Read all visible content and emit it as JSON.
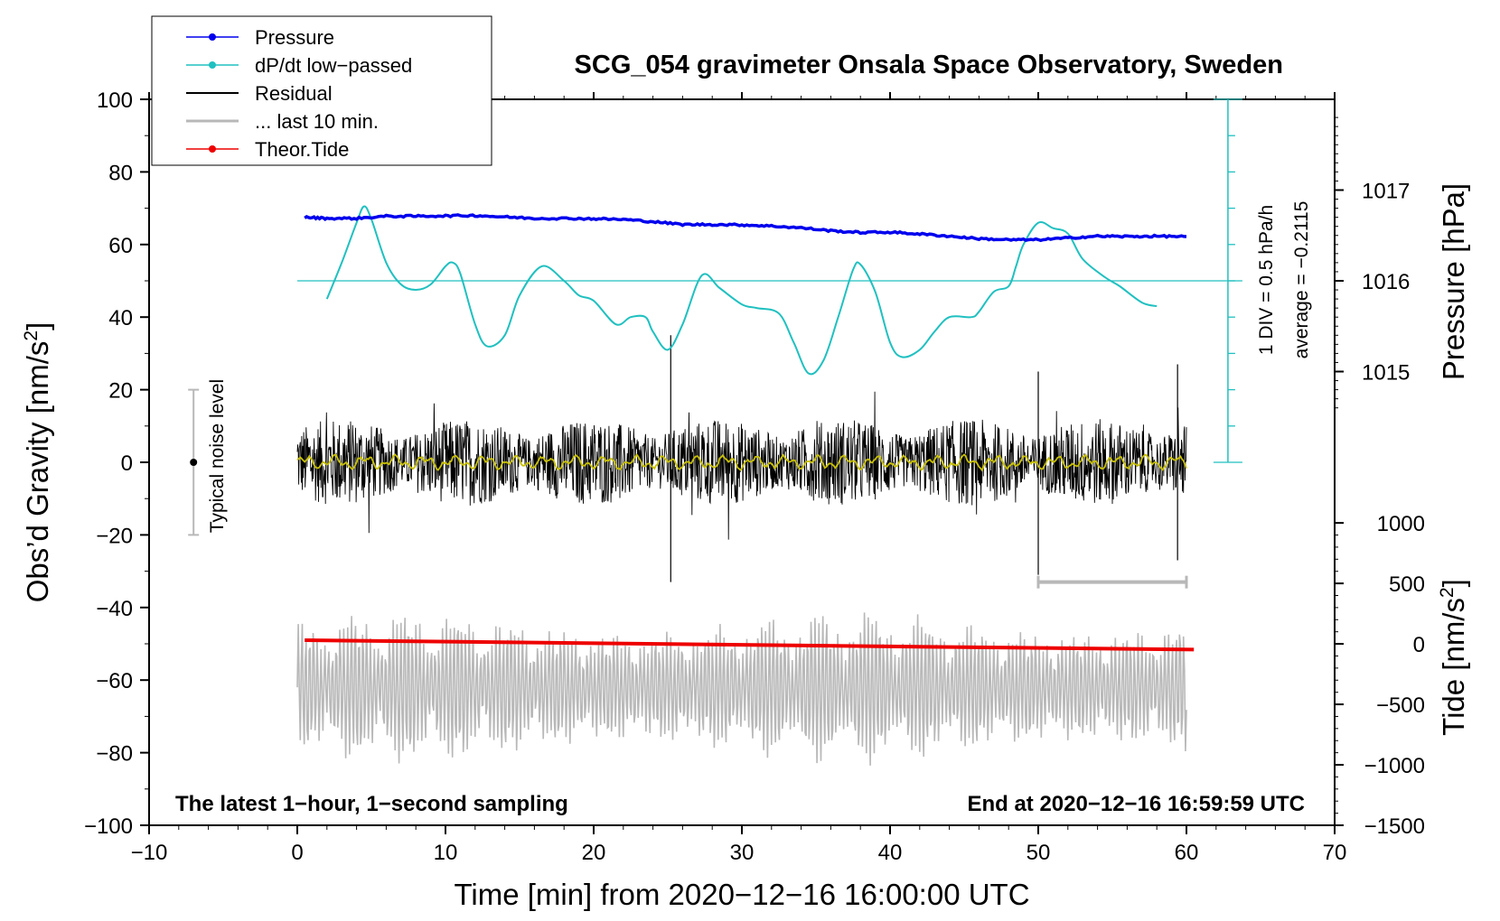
{
  "chart_data": {
    "type": "line",
    "title": "SCG_054 gravimeter Onsala Space Observatory, Sweden",
    "xlabel": "Time [min] from 2020−12−16 16:00:00 UTC",
    "ylabel_left": "Obs’d Gravity [nm/s",
    "ylabel_left_sup": "2",
    "ylabel_left_close": "]",
    "ylabel_pressure": "Pressure [hPa]",
    "ylabel_tide": "Tide [nm/s",
    "ylabel_tide_sup": "2",
    "ylabel_tide_close": "]",
    "xlim": [
      -10,
      70
    ],
    "ylim": [
      -100,
      100
    ],
    "x_ticks": [
      -10,
      0,
      10,
      20,
      30,
      40,
      50,
      60,
      70
    ],
    "x_tick_labels": [
      "−10",
      "0",
      "10",
      "20",
      "30",
      "40",
      "50",
      "60",
      "70"
    ],
    "y_ticks": [
      -100,
      -80,
      -60,
      -40,
      -20,
      0,
      20,
      40,
      60,
      80,
      100
    ],
    "y_tick_labels": [
      "−100",
      "−80",
      "−60",
      "−40",
      "−20",
      "0",
      "20",
      "40",
      "60",
      "80",
      "100"
    ],
    "pressure_ticks": [
      1015,
      1016,
      1017
    ],
    "pressure_tick_labels": [
      "1015",
      "1016",
      "1017"
    ],
    "pressure_gravity_map": {
      "hPa": [
        1015,
        1016,
        1017
      ],
      "gravity": [
        25,
        50,
        75
      ]
    },
    "tide_ticks": [
      -1500,
      -1000,
      -500,
      0,
      500,
      1000
    ],
    "tide_tick_labels": [
      "−1500",
      "−1000",
      "−500",
      "0",
      "500",
      "1000"
    ],
    "tide_gravity_map": {
      "nm_s2": [
        -1500,
        0,
        1000
      ],
      "gravity": [
        -100,
        -50,
        -16.7
      ]
    },
    "dpdt_scale": {
      "top": 100,
      "bottom": 0,
      "divisions": 10,
      "x_position_min": 62.8,
      "zero_line_value": 50
    },
    "dpdt_label": "1 DIV = 0.5 hPa/h",
    "average_label": "average = −0.2115",
    "bottom_left_note": "The latest 1−hour, 1−second sampling",
    "bottom_right_note": "End at 2020−12−16 16:59:59 UTC",
    "noise_label": "Typical noise level",
    "noise_bar": {
      "x_min": -7.0,
      "center": 0,
      "low": -20,
      "high": 20
    },
    "last10_bar": {
      "x_start": 50,
      "x_end": 60,
      "y": -33
    },
    "legend": [
      {
        "label": "Pressure",
        "color": "#0000ee",
        "marker": true
      },
      {
        "label": "dP/dt low−passed",
        "color": "#20c0c0",
        "marker": true
      },
      {
        "label": "Residual",
        "color": "#000000",
        "marker": false
      },
      {
        "label": "... last 10 min.",
        "color": "#b8b8b8",
        "marker": false
      },
      {
        "label": "Theor.Tide",
        "color": "#ee0000",
        "marker": true
      }
    ],
    "series": [
      {
        "name": "Pressure",
        "color": "#0000ee",
        "x": [
          0.5,
          2,
          4,
          6,
          8,
          10,
          12,
          14,
          16,
          18,
          20,
          22,
          24,
          26,
          28,
          30,
          32,
          34,
          36,
          38,
          40,
          42,
          44,
          46,
          48,
          50,
          52,
          54,
          56,
          58,
          60
        ],
        "y": [
          67.5,
          67.2,
          67.2,
          67.8,
          67.8,
          67.9,
          68.0,
          67.6,
          67.2,
          67.2,
          67.1,
          66.9,
          66.3,
          65.5,
          65.5,
          65.4,
          65.1,
          64.6,
          63.8,
          63.3,
          63.4,
          62.9,
          62.3,
          61.6,
          61.3,
          61.3,
          61.8,
          62.3,
          62.2,
          62.3,
          62.2
        ]
      },
      {
        "name": "dP/dt low−passed",
        "color": "#20c0c0",
        "x": [
          2,
          3,
          4,
          4.5,
          5,
          6,
          7,
          8,
          9,
          10,
          10.5,
          11,
          12,
          12.8,
          14,
          15,
          16.5,
          18,
          19,
          20,
          21.5,
          22.5,
          23.5,
          24,
          25,
          26,
          27.3,
          28.5,
          30,
          31,
          32.5,
          33.5,
          34.5,
          35.5,
          36.5,
          37.5,
          38,
          39,
          40,
          40.8,
          42,
          43,
          44,
          45.5,
          46,
          47,
          48,
          48.5,
          49,
          50,
          51,
          52,
          53,
          54.5,
          55.5,
          57,
          58
        ],
        "y": [
          45,
          55,
          66,
          70.5,
          67,
          55,
          49,
          47.5,
          49,
          54,
          55,
          52,
          38,
          32,
          35,
          46,
          54,
          50,
          46,
          44.5,
          38,
          40,
          40,
          36,
          31,
          38,
          51.5,
          48,
          43.5,
          42.5,
          41,
          33,
          24.5,
          28,
          40,
          53,
          54.5,
          47,
          33,
          29,
          31,
          36,
          40,
          40,
          41.5,
          47,
          48.5,
          54,
          60,
          66,
          64.5,
          63,
          56,
          51,
          48.5,
          44,
          43
        ]
      },
      {
        "name": "Residual",
        "color": "#000000",
        "x_range": [
          0,
          60
        ],
        "amplitude": 12,
        "peak_min": -33,
        "peak_max": 35
      },
      {
        "name": "... last 10 min.",
        "color": "#b8b8b8",
        "x_range": [
          0,
          60
        ],
        "center": -62,
        "amplitude": 20,
        "min": -89,
        "max": -37
      },
      {
        "name": "Theor.Tide",
        "color": "#ee0000",
        "x": [
          0.5,
          60.5
        ],
        "y": [
          -49,
          -51.6
        ]
      },
      {
        "name": "Smoothed residual",
        "color": "#c8c000",
        "x_range": [
          0,
          60
        ],
        "center": 0,
        "amplitude": 2
      }
    ]
  }
}
